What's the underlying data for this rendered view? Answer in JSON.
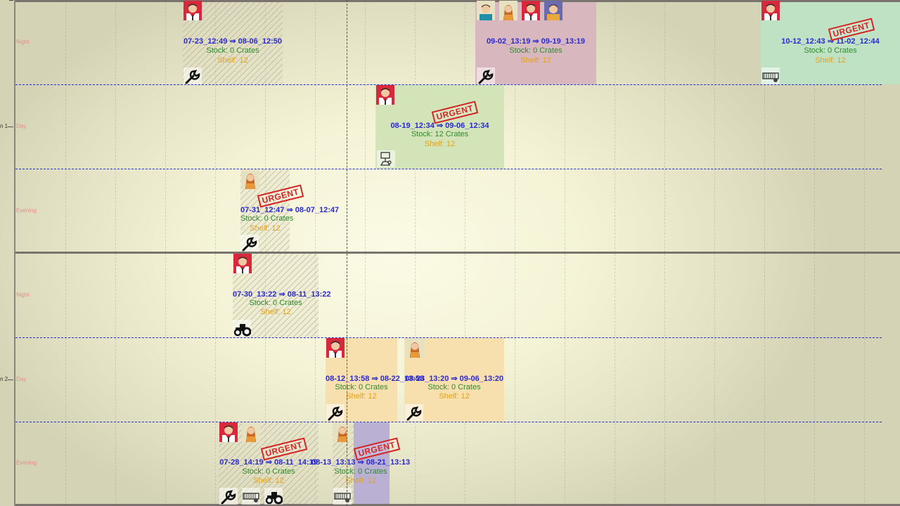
{
  "colors": {
    "divider": "#1e2fd6",
    "now_line": "#e0201c",
    "date_text": "#2a2ad0",
    "stock_text": "#2f8a2f",
    "shelf_text": "#e3a21a",
    "row_label": "#e98b8b",
    "urgent": "#d62424"
  },
  "groups": [
    {
      "label": "n 1",
      "rows": [
        {
          "label": "Night"
        },
        {
          "label": "Day"
        },
        {
          "label": "Evening"
        }
      ]
    },
    {
      "label": "n 2",
      "rows": [
        {
          "label": "Night"
        },
        {
          "label": "Day"
        },
        {
          "label": "Evening"
        }
      ]
    }
  ],
  "tasks": [
    {
      "id": "t1",
      "date_range": "07-23_12:49 ⇒ 08-06_12:50",
      "stock": "Stock: 0 Crates",
      "shelf": "Shelf: 12",
      "urgent": null,
      "fill": "hatched",
      "avatars": [
        "man-avatar-icon"
      ],
      "tools": [
        "wrench-icon"
      ]
    },
    {
      "id": "t2",
      "date_range": "09-02_13:19 ⇒ 09-19_13:19",
      "stock": "Stock: 0 Crates",
      "shelf": "Shelf: 12",
      "urgent": null,
      "fill": "#d9b7bf",
      "avatars": [
        "man-blue-avatar-icon",
        "woman-avatar-icon",
        "man-avatar-icon",
        "man-purple-avatar-icon"
      ],
      "tools": [
        "wrench-icon"
      ]
    },
    {
      "id": "t3",
      "date_range": "10-12_12:43 ⇒ 11-02_12:44",
      "stock": "Stock: 0 Crates",
      "shelf": "Shelf: 12",
      "urgent": "URGENT",
      "fill": "#bfe2c4",
      "avatars": [
        "man-avatar-icon"
      ],
      "tools": [
        "harvester-icon"
      ]
    },
    {
      "id": "t4",
      "date_range": "08-19_12:34 ⇒ 09-06_12:34",
      "stock": "Stock: 12 Crates",
      "shelf": "Shelf: 12",
      "urgent": "URGENT",
      "fill": "#d2e4b8",
      "avatars": [
        "man-avatar-icon"
      ],
      "tools": [
        "worker-icon"
      ]
    },
    {
      "id": "t5",
      "date_range": "07-31_12:47 ⇒ 08-07_12:47",
      "stock": "Stock: 0 Crates",
      "shelf": "Shelf: 12",
      "urgent": "URGENT",
      "fill": "hatched",
      "avatars": [
        "woman-avatar-icon"
      ],
      "tools": [
        "wrench-icon"
      ]
    },
    {
      "id": "t6",
      "date_range": "07-30_13:22 ⇒ 08-11_13:22",
      "stock": "Stock: 0 Crates",
      "shelf": "Shelf: 12",
      "urgent": null,
      "fill": "hatched",
      "avatars": [
        "man-avatar-icon"
      ],
      "tools": [
        "tractor-icon"
      ]
    },
    {
      "id": "t7",
      "date_range": "08-12_13:58 ⇒ 08-22_13:58",
      "stock": "Stock: 0 Crates",
      "shelf": "Shelf: 12",
      "urgent": null,
      "fill": "#f7dfae",
      "avatars": [
        "man-avatar-icon"
      ],
      "tools": [
        "wrench-icon"
      ]
    },
    {
      "id": "t8",
      "date_range": "08-23_13:20 ⇒ 09-06_13:20",
      "stock": "Stock: 0 Crates",
      "shelf": "Shelf: 12",
      "urgent": null,
      "fill": "#f7dfae",
      "avatars": [
        "woman-avatar-icon"
      ],
      "tools": [
        "wrench-icon"
      ]
    },
    {
      "id": "t9",
      "date_range": "07-28_14:19 ⇒ 08-11_14:19",
      "stock": "Stock: 0 Crates",
      "shelf": "Shelf: 12",
      "urgent": "URGENT",
      "fill": "hatched",
      "avatars": [
        "man-avatar-icon",
        "woman-avatar-icon"
      ],
      "tools": [
        "wrench-icon",
        "harvester-icon",
        "tractor-icon"
      ]
    },
    {
      "id": "t10",
      "date_range": "08-13_13:13 ⇒ 08-21_13:13",
      "stock": "Stock: 0 Crates",
      "shelf": "Shelf: 12",
      "urgent": "URGENT",
      "fill": "#b9b0d4",
      "avatars": [
        "woman-avatar-icon"
      ],
      "tools": [
        "harvester-icon"
      ]
    }
  ]
}
